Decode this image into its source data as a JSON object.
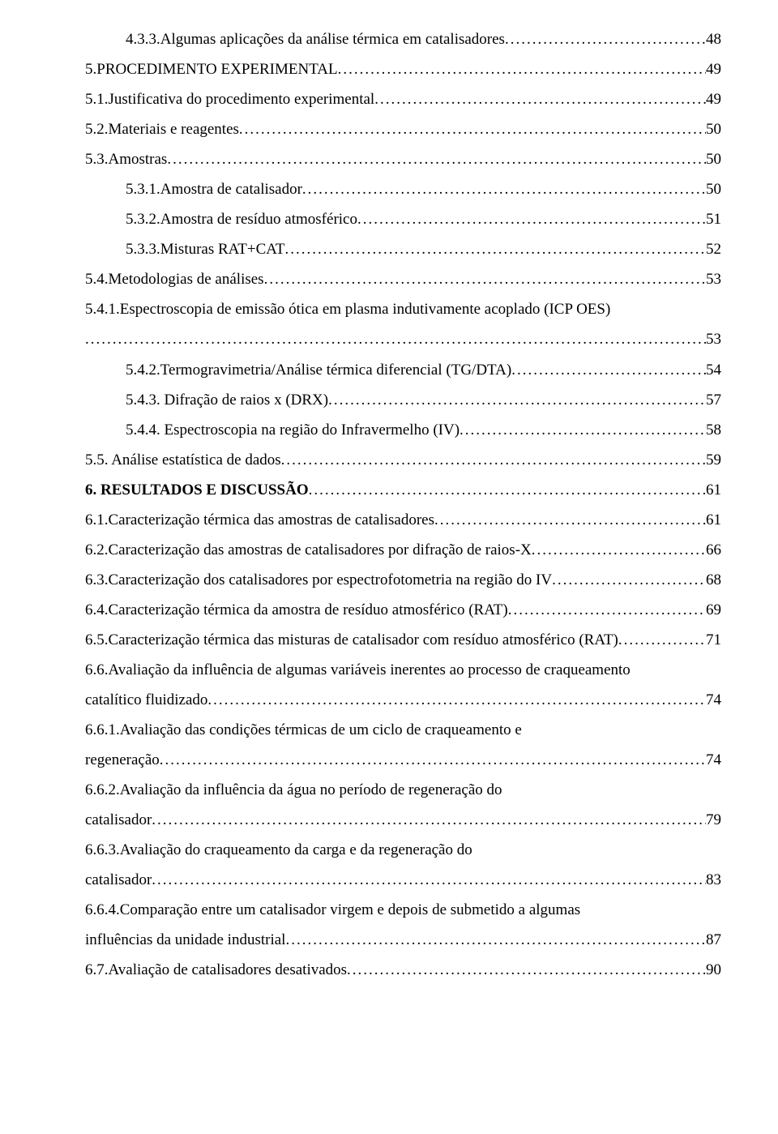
{
  "entries": [
    {
      "indent": 1,
      "label": "4.3.3.Algumas aplicações da análise térmica em catalisadores",
      "page": "48",
      "bold": false
    },
    {
      "indent": 0,
      "label": "5.PROCEDIMENTO EXPERIMENTAL",
      "page": "49",
      "bold": false
    },
    {
      "indent": 0,
      "label": "5.1.Justificativa do procedimento experimental",
      "page": "49",
      "bold": false
    },
    {
      "indent": 0,
      "label": "5.2.Materiais e reagentes",
      "page": "50",
      "bold": false
    },
    {
      "indent": 0,
      "label": "5.3.Amostras",
      "page": "50",
      "bold": false
    },
    {
      "indent": 1,
      "label": "5.3.1.Amostra de catalisador",
      "page": "50",
      "bold": false
    },
    {
      "indent": 1,
      "label": "5.3.2.Amostra de resíduo atmosférico",
      "page": "51",
      "bold": false
    },
    {
      "indent": 1,
      "label": "5.3.3.Misturas RAT+CAT",
      "page": "52",
      "bold": false
    },
    {
      "indent": 0,
      "label": "5.4.Metodologias de análises",
      "page": "53",
      "bold": false
    },
    {
      "indent": 1,
      "wrap": true,
      "lead": "5.4.1.Espectroscopia de emissão ótica em plasma indutivamente acoplado (ICP OES)",
      "tail": "",
      "page": "53",
      "bold": false
    },
    {
      "indent": 1,
      "label": "5.4.2.Termogravimetria/Análise térmica diferencial (TG/DTA)",
      "page": "54",
      "bold": false
    },
    {
      "indent": 1,
      "label": "5.4.3. Difração de raios x (DRX)",
      "page": "57",
      "bold": false
    },
    {
      "indent": 1,
      "label": "5.4.4. Espectroscopia na região do Infravermelho (IV)",
      "page": "58",
      "bold": false
    },
    {
      "indent": 0,
      "label": "5.5. Análise estatística de dados",
      "page": "59",
      "bold": false
    },
    {
      "indent": 0,
      "label": "6. RESULTADOS E DISCUSSÃO",
      "page": "61",
      "bold": true
    },
    {
      "indent": 0,
      "label": "6.1.Caracterização térmica das amostras de catalisadores",
      "page": "61",
      "bold": false
    },
    {
      "indent": 0,
      "label": "6.2.Caracterização das amostras de catalisadores por difração de  raios-X",
      "page": "66",
      "bold": false
    },
    {
      "indent": 0,
      "label": "6.3.Caracterização dos catalisadores  por espectrofotometria na região do IV",
      "page": "68",
      "bold": false
    },
    {
      "indent": 0,
      "label": "6.4.Caracterização térmica da amostra de resíduo atmosférico (RAT)",
      "page": "69",
      "bold": false
    },
    {
      "indent": 0,
      "label": "6.5.Caracterização térmica das misturas de catalisador com resíduo atmosférico (RAT)",
      "page": "71",
      "bold": false
    },
    {
      "indent": 0,
      "wrap": true,
      "lead": "6.6.Avaliação da influência de algumas variáveis inerentes ao processo de craqueamento",
      "tail": "catalítico fluidizado",
      "page": "74",
      "bold": false
    },
    {
      "indent": 1,
      "wrap": true,
      "lead": "6.6.1.Avaliação das condições térmicas de um ciclo de craqueamento e",
      "tail": "regeneração",
      "page": "74",
      "bold": false
    },
    {
      "indent": 1,
      "wrap": true,
      "lead": "6.6.2.Avaliação da influência da água no período de regeneração do",
      "tail": "catalisador",
      "page": "79",
      "bold": false
    },
    {
      "indent": 1,
      "wrap": true,
      "lead": "6.6.3.Avaliação do craqueamento da carga e da regeneração do",
      "tail": "catalisador",
      "page": "83",
      "bold": false
    },
    {
      "indent": 1,
      "wrap": true,
      "lead": "6.6.4.Comparação entre um catalisador virgem e depois de submetido a algumas",
      "tail": "influências da unidade industrial",
      "page": "87",
      "bold": false
    },
    {
      "indent": 0,
      "label": "6.7.Avaliação de catalisadores desativados",
      "page": "90",
      "bold": false
    }
  ]
}
